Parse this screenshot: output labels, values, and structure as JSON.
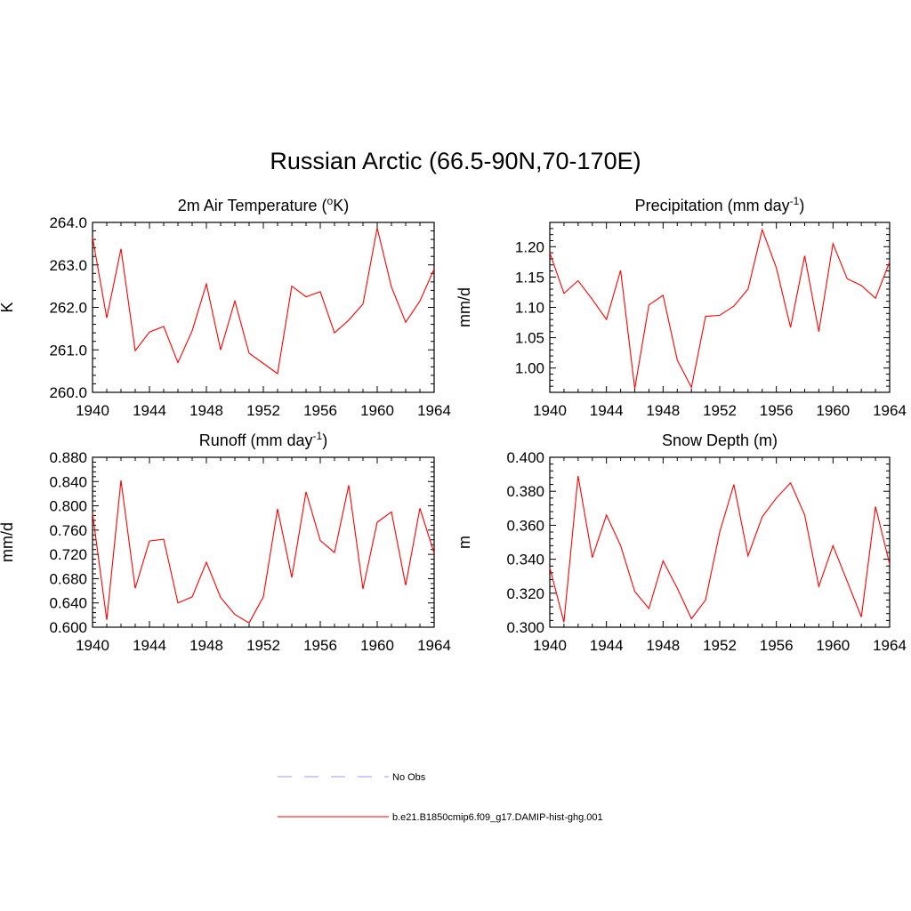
{
  "title": "Russian Arctic (66.5-90N,70-170E)",
  "colors": {
    "model": "#ff0000",
    "obs": "#9999ff",
    "axis": "#000000"
  },
  "chart_data": [
    {
      "type": "line",
      "panel_title": {
        "base": "2m Air Temperature (",
        "sup": "o",
        "tail": "K)"
      },
      "ylabel": "K",
      "xlim": [
        1940,
        1964
      ],
      "ylim": [
        260.0,
        264.0
      ],
      "x_ticks": [
        "1940",
        "1944",
        "1948",
        "1952",
        "1956",
        "1960",
        "1964"
      ],
      "y_ticks": [
        "260.0",
        "261.0",
        "262.0",
        "263.0",
        "264.0"
      ],
      "x": [
        1940,
        1941,
        1942,
        1943,
        1944,
        1945,
        1946,
        1947,
        1948,
        1949,
        1950,
        1951,
        1952,
        1953,
        1954,
        1955,
        1956,
        1957,
        1958,
        1959,
        1960,
        1961,
        1962,
        1963,
        1964
      ],
      "series": [
        {
          "name": "b.e21.B1850cmip6.f09_g17.DAMIP-hist-ghg.001",
          "values": [
            263.65,
            261.75,
            263.38,
            260.98,
            261.42,
            261.55,
            260.7,
            261.45,
            262.55,
            261.0,
            262.15,
            260.92,
            260.68,
            260.44,
            262.5,
            262.25,
            262.37,
            261.4,
            261.7,
            262.08,
            263.87,
            262.48,
            261.65,
            262.15,
            262.9
          ]
        }
      ]
    },
    {
      "type": "line",
      "panel_title": {
        "base": "Precipitation (mm day",
        "sup": "-1",
        "tail": ")"
      },
      "ylabel": "mm/d",
      "xlim": [
        1940,
        1964
      ],
      "ylim": [
        0.96,
        1.24
      ],
      "x_ticks": [
        "1940",
        "1944",
        "1948",
        "1952",
        "1956",
        "1960",
        "1964"
      ],
      "y_ticks": [
        "1.00",
        "1.05",
        "1.10",
        "1.15",
        "1.20"
      ],
      "x": [
        1940,
        1941,
        1942,
        1943,
        1944,
        1945,
        1946,
        1947,
        1948,
        1949,
        1950,
        1951,
        1952,
        1953,
        1954,
        1955,
        1956,
        1957,
        1958,
        1959,
        1960,
        1961,
        1962,
        1963,
        1964
      ],
      "series": [
        {
          "name": "b.e21.B1850cmip6.f09_g17.DAMIP-hist-ghg.001",
          "values": [
            1.19,
            1.123,
            1.144,
            1.113,
            1.08,
            1.161,
            0.966,
            1.104,
            1.12,
            1.013,
            0.968,
            1.085,
            1.087,
            1.102,
            1.13,
            1.228,
            1.165,
            1.067,
            1.185,
            1.06,
            1.205,
            1.147,
            1.136,
            1.115,
            1.175
          ]
        }
      ]
    },
    {
      "type": "line",
      "panel_title": {
        "base": "Runoff (mm day",
        "sup": "-1",
        "tail": ")"
      },
      "ylabel": "mm/d",
      "xlim": [
        1940,
        1964
      ],
      "ylim": [
        0.6,
        0.88
      ],
      "x_ticks": [
        "1940",
        "1944",
        "1948",
        "1952",
        "1956",
        "1960",
        "1964"
      ],
      "y_ticks": [
        "0.600",
        "0.640",
        "0.680",
        "0.720",
        "0.760",
        "0.800",
        "0.840",
        "0.880"
      ],
      "x": [
        1940,
        1941,
        1942,
        1943,
        1944,
        1945,
        1946,
        1947,
        1948,
        1949,
        1950,
        1951,
        1952,
        1953,
        1954,
        1955,
        1956,
        1957,
        1958,
        1959,
        1960,
        1961,
        1962,
        1963,
        1964
      ],
      "series": [
        {
          "name": "b.e21.B1850cmip6.f09_g17.DAMIP-hist-ghg.001",
          "values": [
            0.788,
            0.612,
            0.842,
            0.664,
            0.742,
            0.745,
            0.64,
            0.65,
            0.707,
            0.649,
            0.621,
            0.607,
            0.65,
            0.795,
            0.682,
            0.823,
            0.743,
            0.723,
            0.834,
            0.663,
            0.773,
            0.79,
            0.669,
            0.796,
            0.722
          ]
        }
      ]
    },
    {
      "type": "line",
      "panel_title": {
        "base": "Snow Depth (m)",
        "sup": "",
        "tail": ""
      },
      "ylabel": "m",
      "xlim": [
        1940,
        1964
      ],
      "ylim": [
        0.3,
        0.4
      ],
      "x_ticks": [
        "1940",
        "1944",
        "1948",
        "1952",
        "1956",
        "1960",
        "1964"
      ],
      "y_ticks": [
        "0.300",
        "0.320",
        "0.340",
        "0.360",
        "0.380",
        "0.400"
      ],
      "x": [
        1940,
        1941,
        1942,
        1943,
        1944,
        1945,
        1946,
        1947,
        1948,
        1949,
        1950,
        1951,
        1952,
        1953,
        1954,
        1955,
        1956,
        1957,
        1958,
        1959,
        1960,
        1961,
        1962,
        1963,
        1964
      ],
      "series": [
        {
          "name": "b.e21.B1850cmip6.f09_g17.DAMIP-hist-ghg.001",
          "values": [
            0.335,
            0.303,
            0.389,
            0.341,
            0.366,
            0.348,
            0.321,
            0.311,
            0.339,
            0.323,
            0.305,
            0.316,
            0.356,
            0.384,
            0.342,
            0.365,
            0.376,
            0.385,
            0.366,
            0.324,
            0.348,
            0.327,
            0.306,
            0.371,
            0.337
          ]
        }
      ]
    }
  ],
  "legend": [
    {
      "label": "No Obs",
      "style": "dashed",
      "color": "#9999ff"
    },
    {
      "label": "b.e21.B1850cmip6.f09_g17.DAMIP-hist-ghg.001",
      "style": "solid",
      "color": "#ff0000"
    }
  ]
}
